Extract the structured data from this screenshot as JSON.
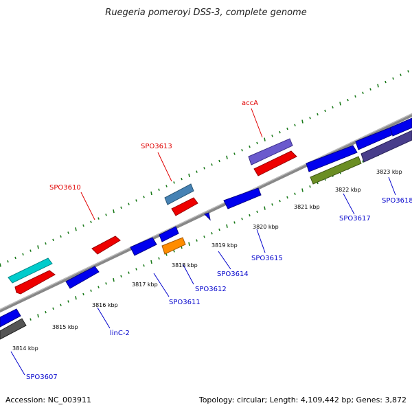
{
  "title": "Ruegeria pomeroyi DSS-3, complete genome",
  "footer": {
    "accession": "Accession: NC_003911",
    "summary": "Topology: circular; Length: 4,109,442 bp; Genes: 3,872"
  },
  "scale_labels": [
    {
      "text": "3814 kbp",
      "pos": 0.6
    },
    {
      "text": "3815 kbp",
      "pos": 1.6
    },
    {
      "text": "3816 kbp",
      "pos": 2.6
    },
    {
      "text": "3817 kbp",
      "pos": 3.6
    },
    {
      "text": "3818 kbp",
      "pos": 4.6
    },
    {
      "text": "3819 kbp",
      "pos": 5.6
    },
    {
      "text": "3820 kbp",
      "pos": 6.6
    },
    {
      "text": "3821 kbp",
      "pos": 7.6
    },
    {
      "text": "3822 kbp",
      "pos": 8.6
    },
    {
      "text": "3823 kbp",
      "pos": 9.6
    }
  ],
  "gene_labels": [
    {
      "text": "accA",
      "strand": "forward",
      "color": "red"
    },
    {
      "text": "SPO3613",
      "strand": "forward",
      "color": "red"
    },
    {
      "text": "SPO3610",
      "strand": "forward",
      "color": "red"
    },
    {
      "text": "SPO3617",
      "strand": "reverse",
      "color": "blue"
    },
    {
      "text": "SPO3618",
      "strand": "reverse",
      "color": "blue"
    },
    {
      "text": "SPO3615",
      "strand": "reverse",
      "color": "blue"
    },
    {
      "text": "SPO3614",
      "strand": "reverse",
      "color": "blue"
    },
    {
      "text": "SPO3612",
      "strand": "reverse",
      "color": "blue"
    },
    {
      "text": "SPO3611",
      "strand": "reverse",
      "color": "blue"
    },
    {
      "text": "linC-2",
      "strand": "reverse",
      "color": "blue"
    },
    {
      "text": "SPO3607",
      "strand": "reverse",
      "color": "blue"
    }
  ],
  "colors": {
    "backbone": "#888888",
    "tick": "#1a7a1a",
    "red_gene": "#ee0000",
    "blue_gene": "#0000ee",
    "cyan_gene": "#00cccc",
    "purple_gene": "#6a5acd",
    "steel_gene": "#4682b4",
    "orange_gene": "#ff8c00",
    "olive_gene": "#6b8e23",
    "darkslate_gene": "#483d8b",
    "gray_gene": "#555555"
  }
}
